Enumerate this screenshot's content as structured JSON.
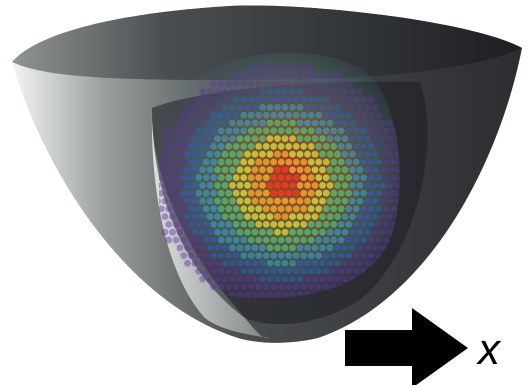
{
  "figure": {
    "axis_label": "x",
    "colors": {
      "background": "#ffffff",
      "bowl_outer_dark": "#2b2d30",
      "bowl_outer_light": "#f3f5f3",
      "bowl_inner": "#1f2124",
      "particle_scale": [
        "#6a2fa3",
        "#3a56c9",
        "#3f9ad0",
        "#58c07a",
        "#d4d93a",
        "#f0a02a",
        "#e83a22"
      ],
      "arrow": "#000000"
    },
    "icons": {
      "bowl": "paraboloid-trap-icon",
      "particles": "particle-cloud-icon",
      "arrow": "right-arrow-icon"
    }
  }
}
